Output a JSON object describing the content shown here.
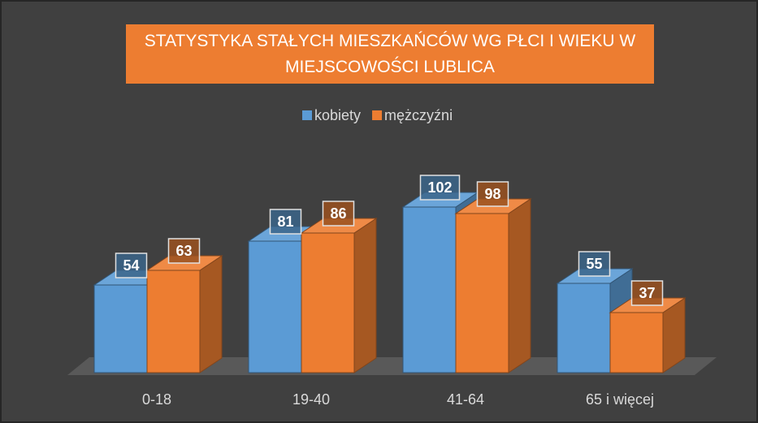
{
  "chart_data": {
    "type": "bar3d",
    "title": "STATYSTYKA STAŁYCH MIESZKAŃCÓW WG PŁCI I WIEKU W MIEJSCOWOŚCI LUBLICA",
    "categories": [
      "0-18",
      "19-40",
      "41-64",
      "65 i więcej"
    ],
    "series": [
      {
        "name": "kobiety",
        "color": "#5b9bd5",
        "values": [
          54,
          81,
          102,
          55
        ]
      },
      {
        "name": "mężczyźni",
        "color": "#ed7d31",
        "values": [
          63,
          86,
          98,
          37
        ]
      }
    ],
    "legend": "top"
  }
}
